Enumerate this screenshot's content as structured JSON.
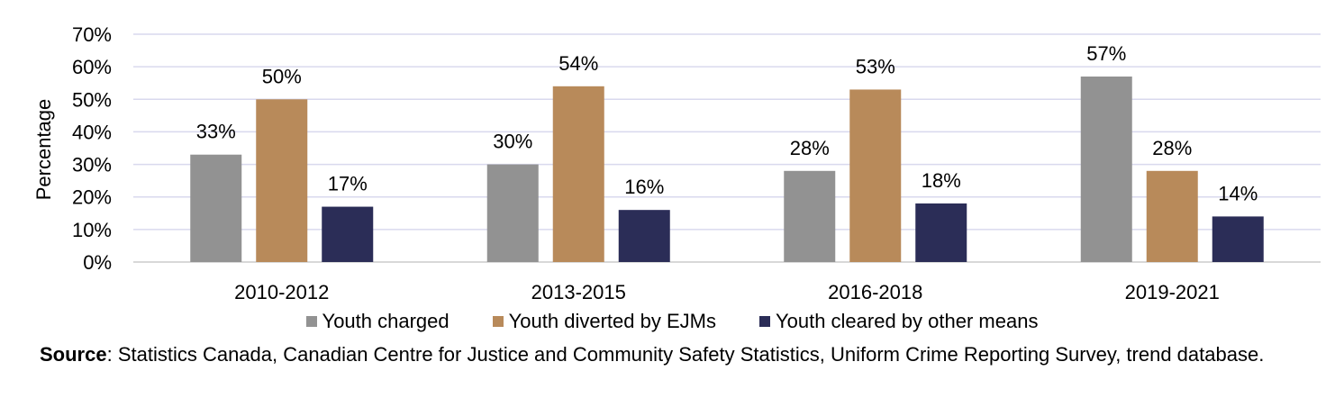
{
  "chart_data": {
    "type": "bar",
    "ylabel": "Percentage",
    "xlabel": "",
    "ylim": [
      0,
      70
    ],
    "yticks": [
      "0%",
      "10%",
      "20%",
      "30%",
      "40%",
      "50%",
      "60%",
      "70%"
    ],
    "ytick_values": [
      0,
      10,
      20,
      30,
      40,
      50,
      60,
      70
    ],
    "grid": true,
    "legend_position": "bottom",
    "categories": [
      "2010-2012",
      "2013-2015",
      "2016-2018",
      "2019-2021"
    ],
    "series": [
      {
        "name": "Youth charged",
        "values": [
          33,
          30,
          28,
          57
        ],
        "labels": [
          "33%",
          "30%",
          "28%",
          "57%"
        ],
        "color": "#929292"
      },
      {
        "name": "Youth diverted by EJMs",
        "values": [
          50,
          54,
          53,
          28
        ],
        "labels": [
          "50%",
          "54%",
          "53%",
          "28%"
        ],
        "color": "#b88a5a"
      },
      {
        "name": "Youth cleared by other means",
        "values": [
          17,
          16,
          18,
          14
        ],
        "labels": [
          "17%",
          "16%",
          "18%",
          "14%"
        ],
        "color": "#2b2d57"
      }
    ]
  },
  "source": {
    "label": "Source",
    "text": ": Statistics Canada, Canadian Centre for Justice and Community Safety Statistics, Uniform Crime Reporting Survey, trend database."
  },
  "colors": {
    "grid": "#d9d9ee",
    "axis": "#cccccc"
  }
}
